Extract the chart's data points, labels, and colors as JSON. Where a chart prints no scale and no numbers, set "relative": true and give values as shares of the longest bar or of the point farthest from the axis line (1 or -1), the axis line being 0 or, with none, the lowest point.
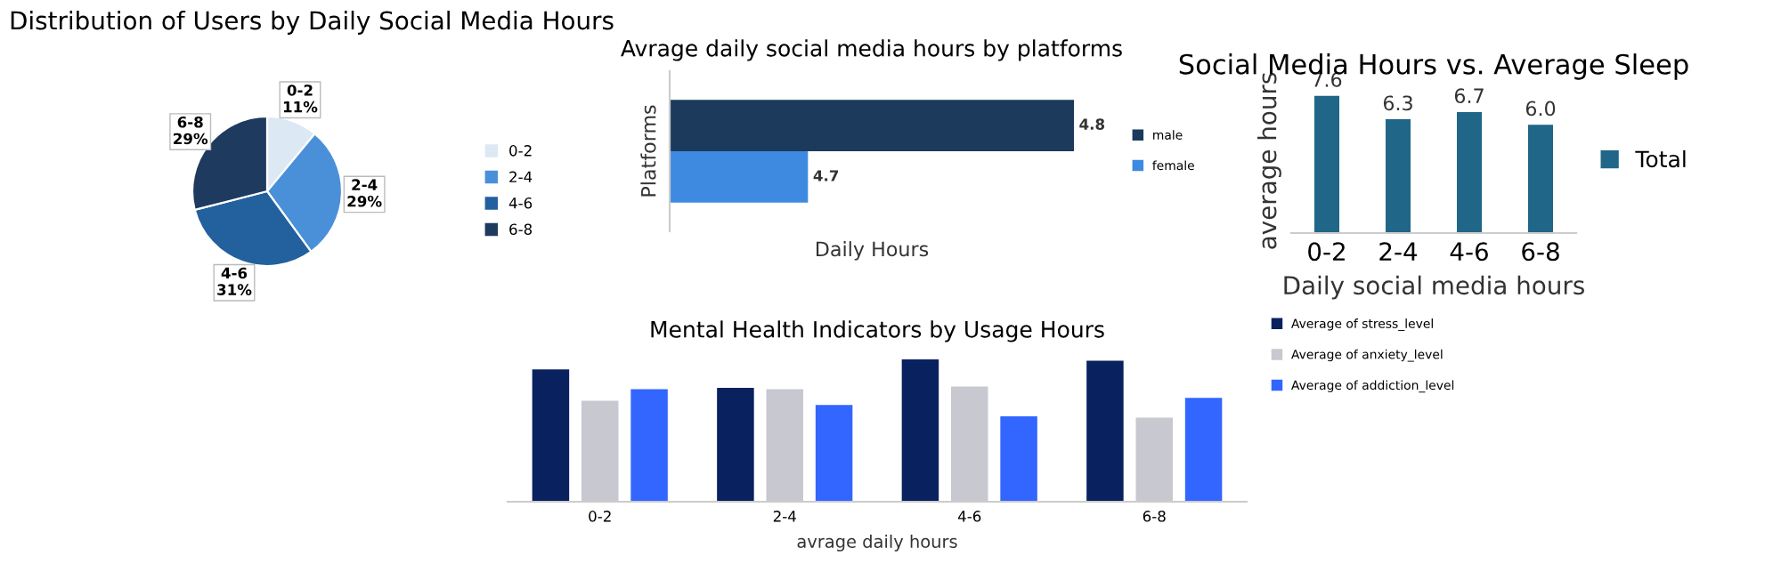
{
  "chart_data": [
    {
      "type": "pie",
      "title": "Distribution of Users by Daily Social Media Hours",
      "categories": [
        "0-2",
        "2-4",
        "4-6",
        "6-8"
      ],
      "values": [
        11,
        29,
        31,
        29
      ],
      "colors": [
        "#dde8f5",
        "#4a90d9",
        "#22609e",
        "#1e3a5f"
      ],
      "value_labels": [
        "0-2\n11%",
        "2-4\n29%",
        "4-6\n31%",
        "6-8\n29%"
      ],
      "legend": "right"
    },
    {
      "type": "bar",
      "orientation": "horizontal",
      "title": "Avrage daily social media hours by platforms",
      "xlabel": "Daily Hours",
      "ylabel": "Platforms",
      "categories": [
        null
      ],
      "xlim": [
        4.648,
        4.8
      ],
      "tick_labels": false,
      "legend": "right",
      "series": [
        {
          "name": "male",
          "color": "#1b3a5c",
          "values": [
            4.8
          ],
          "value_labels": [
            "4.8"
          ]
        },
        {
          "name": "female",
          "color": "#3d8ae0",
          "values": [
            4.7
          ],
          "value_labels": [
            "4.7"
          ]
        }
      ]
    },
    {
      "type": "bar",
      "title": "Social Media Hours vs. Average Sleep",
      "xlabel": "Daily social media hours",
      "ylabel": "average hours",
      "categories": [
        "0-2",
        "2-4",
        "4-6",
        "6-8"
      ],
      "tick_labels": "x",
      "legend": "right",
      "series": [
        {
          "name": "Total",
          "color": "#1f6688",
          "values": [
            7.6,
            6.3,
            6.7,
            6.0
          ],
          "value_labels": [
            "7.6",
            "6.3",
            "6.7",
            "6.0"
          ]
        }
      ]
    },
    {
      "type": "bar",
      "title": "Mental Health Indicators by Usage Hours",
      "xlabel": "avrage daily hours",
      "categories": [
        "0-2",
        "2-4",
        "4-6",
        "6-8"
      ],
      "relative": true,
      "legend": "right",
      "series": [
        {
          "name": "Average of stress_level",
          "color": "#0a2160",
          "values": [
            0.93,
            0.8,
            1,
            0.99
          ]
        },
        {
          "name": "Average of anxiety_level",
          "color": "#c8c8d0",
          "values": [
            0.71,
            0.79,
            0.81,
            0.59
          ]
        },
        {
          "name": "Average of addiction_level",
          "color": "#3366ff",
          "values": [
            0.79,
            0.68,
            0.6,
            0.73
          ]
        }
      ]
    }
  ]
}
